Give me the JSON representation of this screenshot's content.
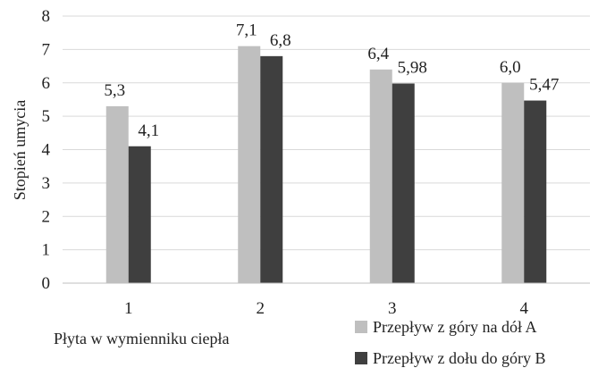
{
  "chart_data": {
    "type": "bar",
    "categories": [
      "1",
      "2",
      "3",
      "4"
    ],
    "series": [
      {
        "name": "Przepływ z góry na dół A",
        "values": [
          5.3,
          7.1,
          6.4,
          6.0
        ],
        "labels": [
          "5,3",
          "7,1",
          "6,4",
          "6,0"
        ],
        "color": "#bfbfbf"
      },
      {
        "name": "Przepływ z dołu do góry B",
        "values": [
          4.1,
          6.8,
          5.98,
          5.47
        ],
        "labels": [
          "4,1",
          "6,8",
          "5,98",
          "5,47"
        ],
        "color": "#3f3f3f"
      }
    ],
    "title": "",
    "xlabel": "Płyta w wymienniku ciepła",
    "ylabel": "Stopień umycia",
    "ylim": [
      0,
      8
    ],
    "yticks": [
      0,
      1,
      2,
      3,
      4,
      5,
      6,
      7,
      8
    ],
    "grid": "horizontal",
    "grid_color": "#d9d9d9",
    "legend_position": "bottom-right"
  }
}
